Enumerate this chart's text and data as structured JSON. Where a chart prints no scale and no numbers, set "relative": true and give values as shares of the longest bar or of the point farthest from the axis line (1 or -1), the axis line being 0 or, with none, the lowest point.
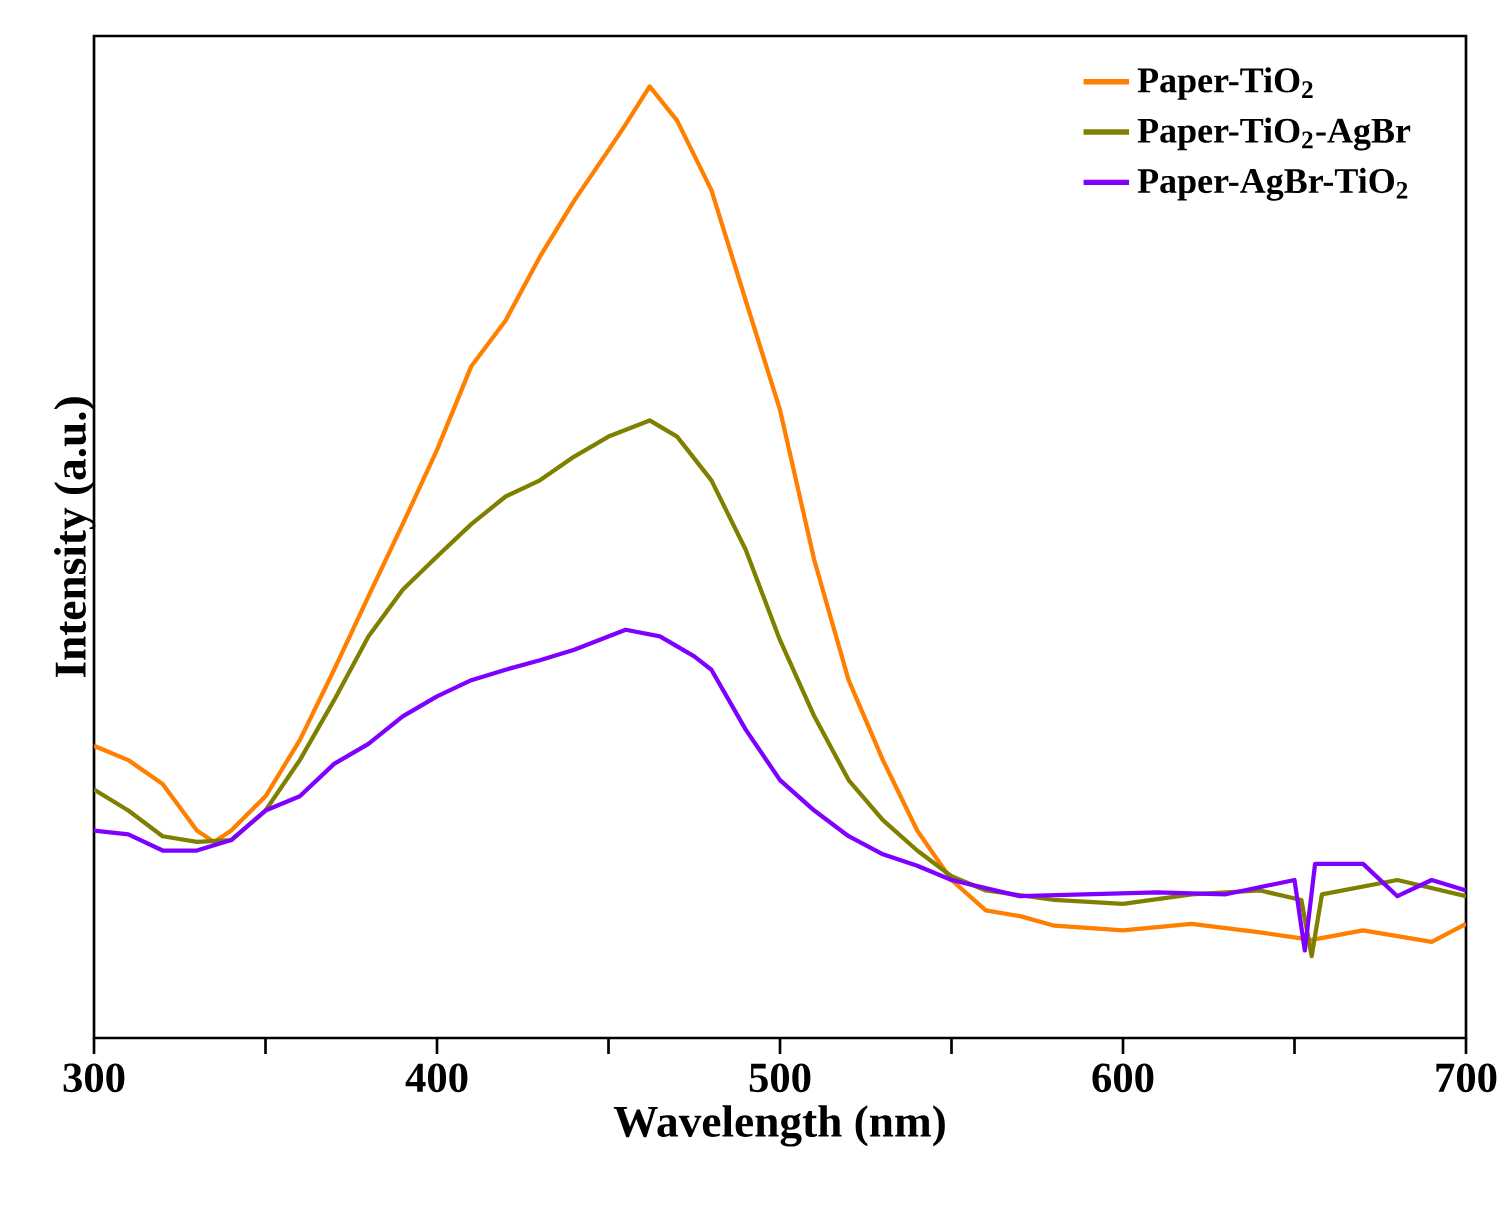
{
  "chart_data": {
    "type": "line",
    "relative": true,
    "xlabel": "Wavelength (nm)",
    "ylabel": "Intensity (a.u.)",
    "xlim": [
      300,
      700
    ],
    "xticks": [
      300,
      {
        "value": 350,
        "label": null
      },
      400,
      {
        "value": 450,
        "label": null
      },
      500,
      {
        "value": 550,
        "label": null
      },
      600,
      {
        "value": 650,
        "label": null
      },
      700
    ],
    "tick_labels": "x",
    "grid": false,
    "legend": "top right",
    "marker": "none",
    "line_style": "solid",
    "series": [
      {
        "name": "Paper-TiO$_{2}$",
        "color": "#ff7f00",
        "x": [
          300,
          310,
          320,
          330,
          335,
          340,
          350,
          360,
          370,
          380,
          390,
          400,
          410,
          420,
          430,
          440,
          450,
          455,
          462,
          470,
          480,
          490,
          500,
          510,
          520,
          530,
          540,
          550,
          560,
          570,
          580,
          600,
          620,
          640,
          655,
          670,
          680,
          690,
          700
        ],
        "values": [
          0.307,
          0.292,
          0.267,
          0.218,
          0.206,
          0.218,
          0.254,
          0.313,
          0.387,
          0.464,
          0.54,
          0.618,
          0.706,
          0.754,
          0.821,
          0.88,
          0.933,
          0.96,
          1.0,
          0.964,
          0.891,
          0.775,
          0.66,
          0.502,
          0.376,
          0.292,
          0.218,
          0.166,
          0.134,
          0.128,
          0.118,
          0.113,
          0.12,
          0.111,
          0.103,
          0.113,
          0.107,
          0.101,
          0.12
        ]
      },
      {
        "name": "Paper-TiO$_{2}$-AgBr",
        "color": "#808000",
        "x": [
          300,
          310,
          320,
          330,
          340,
          350,
          360,
          370,
          380,
          390,
          400,
          410,
          420,
          430,
          440,
          450,
          462,
          470,
          480,
          490,
          500,
          510,
          520,
          530,
          540,
          550,
          560,
          580,
          600,
          620,
          640,
          652,
          655,
          658,
          680,
          700
        ],
        "values": [
          0.261,
          0.239,
          0.212,
          0.206,
          0.208,
          0.239,
          0.292,
          0.355,
          0.422,
          0.471,
          0.506,
          0.54,
          0.569,
          0.586,
          0.611,
          0.632,
          0.649,
          0.632,
          0.586,
          0.513,
          0.418,
          0.338,
          0.271,
          0.229,
          0.197,
          0.17,
          0.155,
          0.145,
          0.141,
          0.151,
          0.155,
          0.145,
          0.086,
          0.151,
          0.166,
          0.149
        ]
      },
      {
        "name": "Paper-AgBr-TiO$_{2}$",
        "color": "#8000ff",
        "x": [
          300,
          310,
          320,
          330,
          340,
          350,
          360,
          370,
          380,
          390,
          400,
          410,
          420,
          430,
          440,
          450,
          455,
          465,
          475,
          480,
          490,
          500,
          510,
          520,
          530,
          540,
          550,
          570,
          590,
          610,
          630,
          650,
          653,
          656,
          670,
          680,
          690,
          700
        ],
        "values": [
          0.218,
          0.214,
          0.197,
          0.197,
          0.208,
          0.239,
          0.254,
          0.288,
          0.309,
          0.338,
          0.359,
          0.376,
          0.387,
          0.397,
          0.408,
          0.422,
          0.429,
          0.422,
          0.401,
          0.387,
          0.324,
          0.271,
          0.239,
          0.212,
          0.193,
          0.181,
          0.166,
          0.149,
          0.151,
          0.153,
          0.151,
          0.166,
          0.092,
          0.183,
          0.183,
          0.149,
          0.166,
          0.155
        ]
      }
    ]
  }
}
